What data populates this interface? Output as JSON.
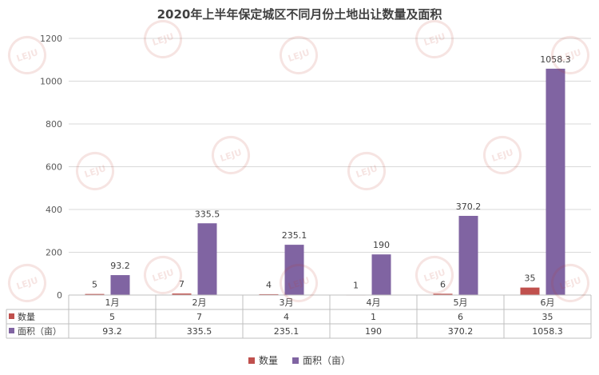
{
  "chart_data": {
    "type": "bar",
    "title": "2020年上半年保定城区不同月份土地出让数量及面积",
    "categories": [
      "1月",
      "2月",
      "3月",
      "4月",
      "5月",
      "6月"
    ],
    "series": [
      {
        "name": "数量",
        "values": [
          5,
          7,
          4,
          1,
          6,
          35
        ],
        "color": "#c0504d"
      },
      {
        "name": "面积（亩）",
        "values": [
          93.2,
          335.5,
          235.1,
          190,
          370.2,
          1058.3
        ],
        "color": "#8064a2"
      }
    ],
    "table_values": [
      [
        "5",
        "7",
        "4",
        "1",
        "6",
        "35"
      ],
      [
        "93.2",
        "335.5",
        "235.1",
        "190",
        "370.2",
        "1058.3"
      ]
    ],
    "ylim": [
      0,
      1200
    ],
    "yticks": [
      0,
      200,
      400,
      600,
      800,
      1000,
      1200
    ],
    "grid": true,
    "legend_position": "bottom",
    "data_table": true
  },
  "watermark": {
    "text": "LEJU",
    "subtext": "乐居"
  }
}
